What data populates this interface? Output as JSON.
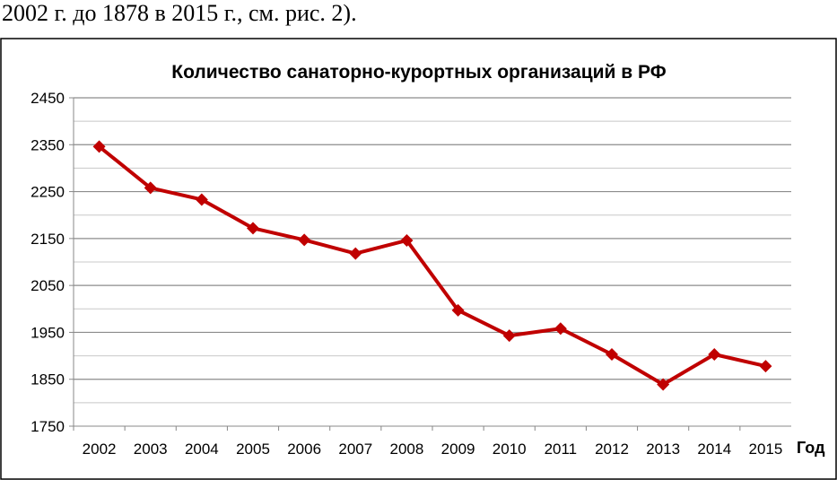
{
  "document": {
    "text_line": "2002 г. до 1878 в 2015 г., см. рис. 2)."
  },
  "chart_data": {
    "type": "line",
    "title": "Количество санаторно-курортных организаций в РФ",
    "xlabel": "Год",
    "ylabel": "",
    "categories": [
      "2002",
      "2003",
      "2004",
      "2005",
      "2006",
      "2007",
      "2008",
      "2009",
      "2010",
      "2011",
      "2012",
      "2013",
      "2014",
      "2015"
    ],
    "series": [
      {
        "values": [
          2346,
          2258,
          2233,
          2172,
          2147,
          2118,
          2146,
          1997,
          1943,
          1958,
          1903,
          1839,
          1903,
          1878
        ]
      }
    ],
    "ylim": [
      1750,
      2450
    ],
    "yticks": [
      1750,
      1850,
      1950,
      2050,
      2150,
      2250,
      2350,
      2450
    ],
    "grid": true,
    "line_color": "#C00000",
    "marker": "diamond"
  }
}
